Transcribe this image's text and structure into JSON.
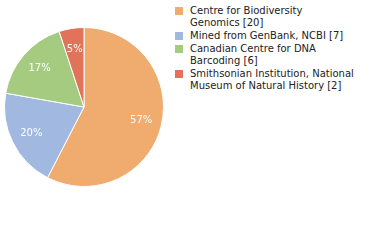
{
  "chart_data": {
    "type": "pie",
    "categories": [
      "Centre for Biodiversity Genomics [20]",
      "Mined from GenBank, NCBI [7]",
      "Canadian Centre for DNA Barcoding [6]",
      "Smithsonian Institution, National Museum of Natural History [2]"
    ],
    "values": [
      57,
      20,
      17,
      5
    ],
    "value_labels": [
      "57%",
      "20%",
      "17%",
      "5%"
    ],
    "colors": [
      "#f0ab6f",
      "#a1b9e0",
      "#a5cb80",
      "#e0735a"
    ],
    "data_labels": true,
    "legend": "right"
  }
}
